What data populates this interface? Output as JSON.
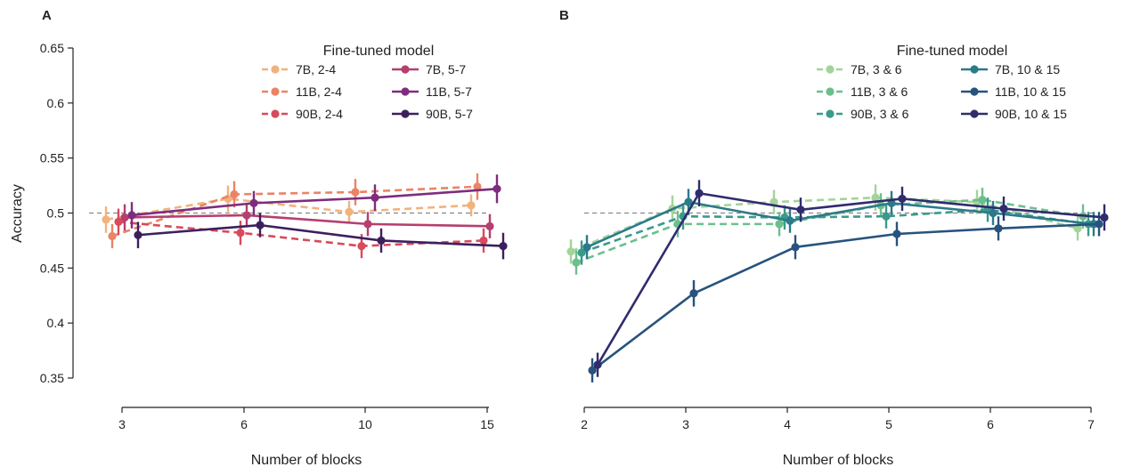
{
  "figure": {
    "ylabel": "Accuracy",
    "xlabel": "Number of blocks"
  },
  "chart_data": [
    {
      "panel": "A",
      "type": "line",
      "title": "",
      "xlabel": "Number of blocks",
      "ylabel": "Accuracy",
      "categories": [
        "3",
        "6",
        "10",
        "15"
      ],
      "ylim": [
        0.35,
        0.65
      ],
      "yticks": [
        "0.35",
        "0.4",
        "0.45",
        "0.5",
        "0.55",
        "0.6",
        "0.65"
      ],
      "reference_y": 0.5,
      "legend_title": "Fine-tuned model",
      "legend_position": "top-right",
      "series": [
        {
          "name": "7B, 2-4",
          "style": "dashed",
          "color": "#f2b27c",
          "values": [
            0.494,
            0.513,
            0.501,
            0.507
          ],
          "errors": [
            0.012,
            0.012,
            0.01,
            0.01
          ]
        },
        {
          "name": "11B, 2-4",
          "style": "dashed",
          "color": "#eb8366",
          "values": [
            0.479,
            0.517,
            0.519,
            0.524
          ],
          "errors": [
            0.011,
            0.012,
            0.012,
            0.012
          ]
        },
        {
          "name": "90B, 2-4",
          "style": "dashed",
          "color": "#d84a5c",
          "values": [
            0.492,
            0.482,
            0.47,
            0.475
          ],
          "errors": [
            0.012,
            0.011,
            0.011,
            0.011
          ]
        },
        {
          "name": "7B, 5-7",
          "style": "solid",
          "color": "#b53f6e",
          "values": [
            0.496,
            0.498,
            0.49,
            0.488
          ],
          "errors": [
            0.012,
            0.011,
            0.011,
            0.011
          ]
        },
        {
          "name": "11B, 5-7",
          "style": "solid",
          "color": "#7e2d7d",
          "values": [
            0.498,
            0.509,
            0.514,
            0.522
          ],
          "errors": [
            0.012,
            0.011,
            0.012,
            0.013
          ]
        },
        {
          "name": "90B, 5-7",
          "style": "solid",
          "color": "#3d1f5e",
          "values": [
            0.48,
            0.489,
            0.475,
            0.47
          ],
          "errors": [
            0.012,
            0.011,
            0.011,
            0.012
          ]
        }
      ]
    },
    {
      "panel": "B",
      "type": "line",
      "title": "",
      "xlabel": "Number of blocks",
      "ylabel": "",
      "categories": [
        "2",
        "3",
        "4",
        "5",
        "6",
        "7"
      ],
      "ylim": [
        0.35,
        0.65
      ],
      "reference_y": 0.5,
      "legend_title": "Fine-tuned model",
      "legend_position": "top-right",
      "series": [
        {
          "name": "7B, 3 & 6",
          "style": "dashed",
          "color": "#a3d49a",
          "values": [
            0.465,
            0.504,
            0.51,
            0.514,
            0.51,
            0.486
          ],
          "errors": [
            0.011,
            0.012,
            0.011,
            0.012,
            0.011,
            0.011
          ]
        },
        {
          "name": "11B, 3 & 6",
          "style": "dashed",
          "color": "#6cbf8c",
          "values": [
            0.455,
            0.49,
            0.49,
            0.507,
            0.512,
            0.497
          ],
          "errors": [
            0.011,
            0.012,
            0.011,
            0.011,
            0.011,
            0.011
          ]
        },
        {
          "name": "90B, 3 & 6",
          "style": "dashed",
          "color": "#3a9a8c",
          "values": [
            0.464,
            0.497,
            0.496,
            0.497,
            0.503,
            0.49
          ],
          "errors": [
            0.011,
            0.012,
            0.011,
            0.011,
            0.011,
            0.011
          ]
        },
        {
          "name": "7B, 10 & 15",
          "style": "solid",
          "color": "#2b7a8a",
          "values": [
            0.469,
            0.51,
            0.493,
            0.509,
            0.5,
            0.49
          ],
          "errors": [
            0.011,
            0.012,
            0.011,
            0.011,
            0.011,
            0.011
          ]
        },
        {
          "name": "11B, 10 & 15",
          "style": "solid",
          "color": "#27537e",
          "values": [
            0.357,
            0.427,
            0.469,
            0.481,
            0.486,
            0.49
          ],
          "errors": [
            0.011,
            0.012,
            0.011,
            0.011,
            0.011,
            0.011
          ]
        },
        {
          "name": "90B, 10 & 15",
          "style": "solid",
          "color": "#2f2c6e",
          "values": [
            0.362,
            0.518,
            0.503,
            0.513,
            0.504,
            0.496
          ],
          "errors": [
            0.011,
            0.012,
            0.011,
            0.011,
            0.011,
            0.012
          ]
        }
      ]
    }
  ]
}
